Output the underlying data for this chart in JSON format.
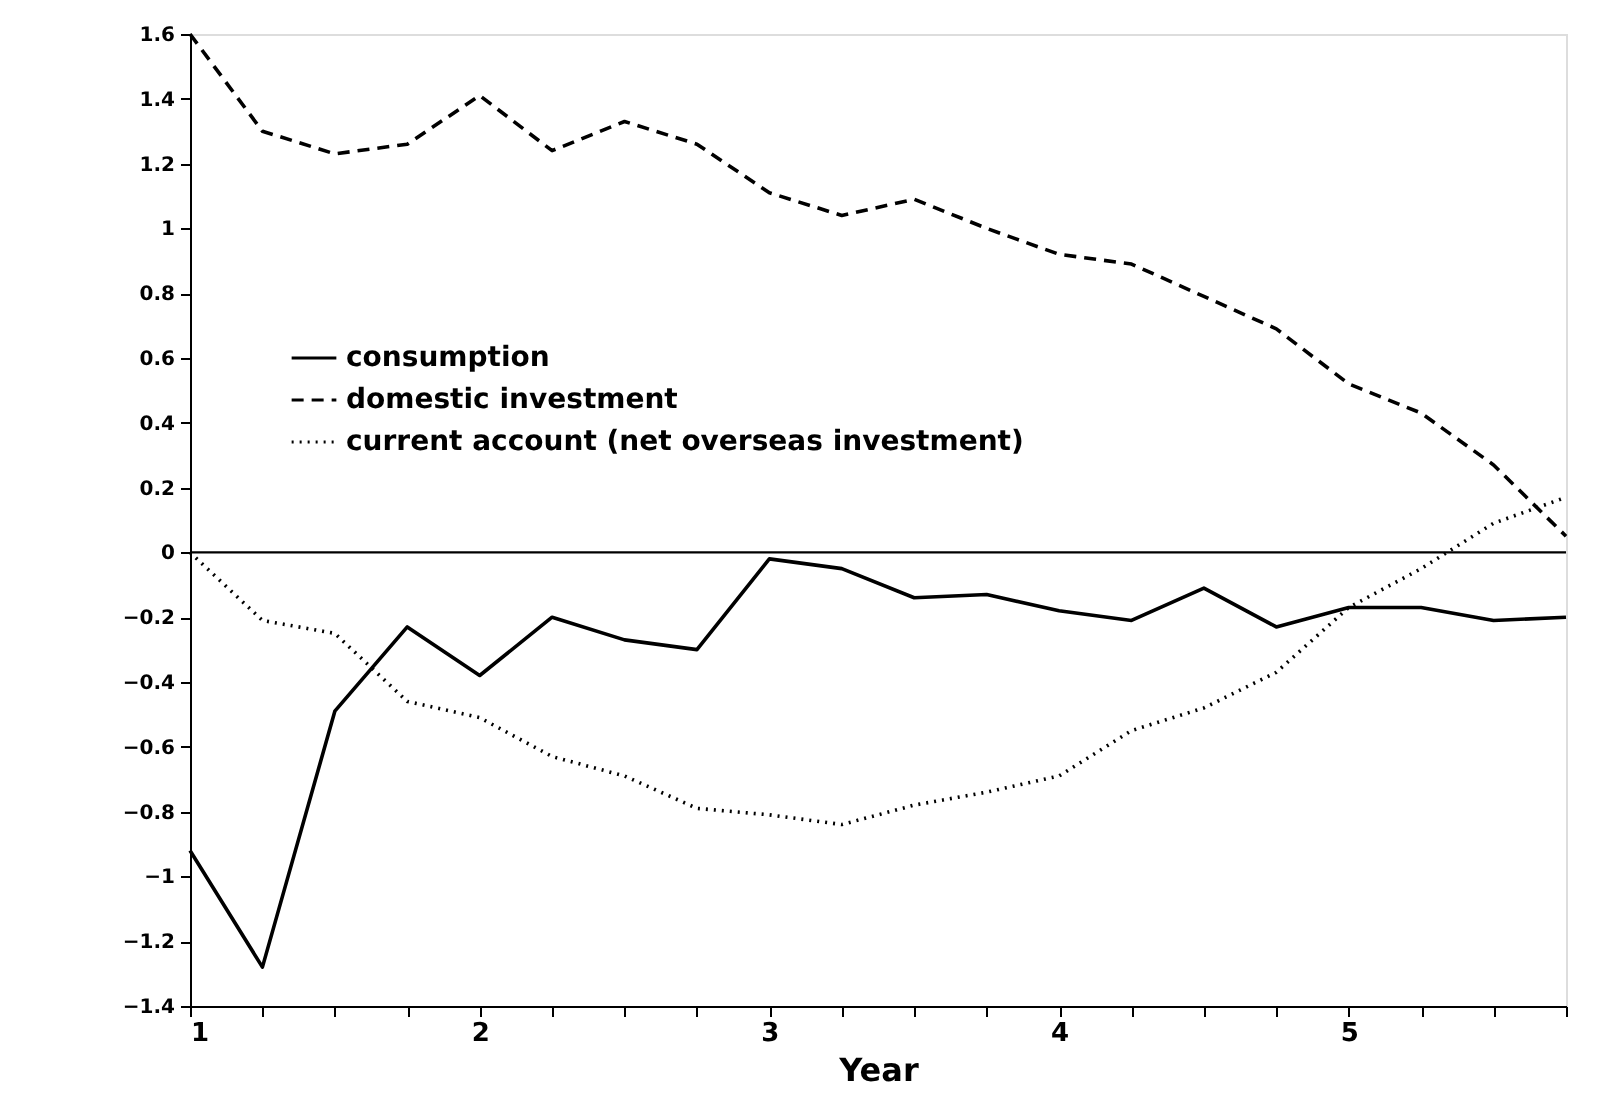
{
  "chart_data": {
    "type": "line",
    "xlabel": "Year",
    "x": [
      1,
      1.25,
      1.5,
      1.75,
      2,
      2.25,
      2.5,
      2.75,
      3,
      3.25,
      3.5,
      3.75,
      4,
      4.25,
      4.5,
      4.75,
      5,
      5.25,
      5.5,
      5.75
    ],
    "series": [
      {
        "name": "consumption",
        "color": "#000000",
        "line_style": "solid",
        "values": [
          -0.92,
          -1.28,
          -0.49,
          -0.23,
          -0.38,
          -0.2,
          -0.27,
          -0.3,
          -0.02,
          -0.05,
          -0.14,
          -0.13,
          -0.18,
          -0.21,
          -0.11,
          -0.23,
          -0.17,
          -0.17,
          -0.21,
          -0.2
        ]
      },
      {
        "name": "domestic investment",
        "color": "#000000",
        "line_style": "dashed",
        "values": [
          1.6,
          1.3,
          1.23,
          1.26,
          1.41,
          1.24,
          1.33,
          1.26,
          1.11,
          1.04,
          1.09,
          1.0,
          0.92,
          0.89,
          0.79,
          0.69,
          0.52,
          0.43,
          0.27,
          0.05
        ]
      },
      {
        "name": "current account (net overseas investment)",
        "color": "#000000",
        "line_style": "dotted",
        "values": [
          0,
          -0.21,
          -0.25,
          -0.46,
          -0.51,
          -0.63,
          -0.69,
          -0.79,
          -0.81,
          -0.84,
          -0.78,
          -0.74,
          -0.69,
          -0.55,
          -0.48,
          -0.37,
          -0.17,
          -0.05,
          0.09,
          0.17
        ]
      }
    ],
    "xlim": [
      1,
      5.75
    ],
    "xticks": [
      1,
      {
        "value": 1.25,
        "label": null
      },
      {
        "value": 1.5,
        "label": null
      },
      {
        "value": 1.75,
        "label": null
      },
      2,
      {
        "value": 2.25,
        "label": null
      },
      {
        "value": 2.5,
        "label": null
      },
      {
        "value": 2.75,
        "label": null
      },
      3,
      {
        "value": 3.25,
        "label": null
      },
      {
        "value": 3.5,
        "label": null
      },
      {
        "value": 3.75,
        "label": null
      },
      4,
      {
        "value": 4.25,
        "label": null
      },
      {
        "value": 4.5,
        "label": null
      },
      {
        "value": 4.75,
        "label": null
      },
      5,
      {
        "value": 5.25,
        "label": null
      },
      {
        "value": 5.5,
        "label": null
      },
      {
        "value": 5.75,
        "label": null
      }
    ],
    "ylim": [
      -1.4,
      1.6
    ],
    "yticks": [
      -1.4,
      -1.2,
      -1,
      -0.8,
      -0.6,
      -0.4,
      -0.2,
      0,
      0.2,
      0.4,
      0.6,
      0.8,
      1,
      1.2,
      1.4,
      1.6
    ],
    "ref_lines": [
      {
        "axis": "y",
        "value": 0,
        "color": "#000000",
        "line_style": "solid"
      }
    ],
    "legend": "top left",
    "grid": false,
    "marker": "none"
  }
}
